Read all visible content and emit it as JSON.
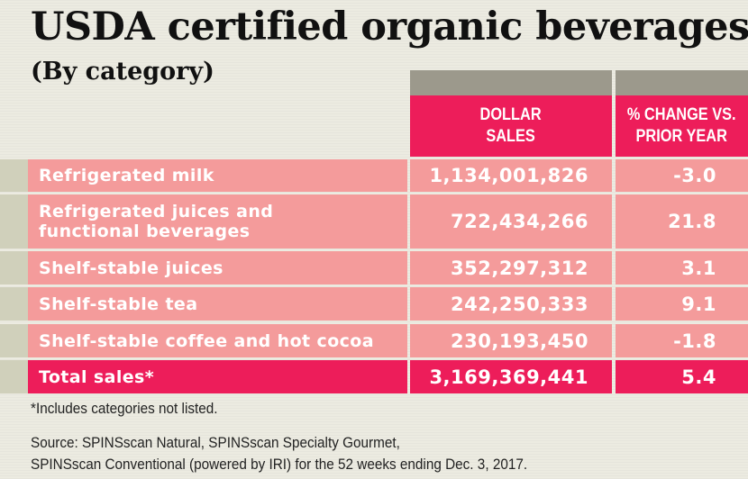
{
  "title": "USDA certified organic beverages",
  "subtitle": "(By category)",
  "chart_data": {
    "type": "table",
    "columns": [
      "DOLLAR\nSALES",
      "% CHANGE VS.\nPRIOR YEAR"
    ],
    "rows": [
      {
        "label": "Refrigerated milk",
        "sales": "1,134,001,826",
        "change": "-3.0"
      },
      {
        "label": "Refrigerated juices and\nfunctional beverages",
        "sales": "722,434,266",
        "change": "21.8"
      },
      {
        "label": "Shelf-stable juices",
        "sales": "352,297,312",
        "change": "3.1"
      },
      {
        "label": "Shelf-stable tea",
        "sales": "242,250,333",
        "change": "9.1"
      },
      {
        "label": "Shelf-stable coffee and hot cocoa",
        "sales": "230,193,450",
        "change": "-1.8"
      }
    ],
    "total": {
      "label": "Total sales*",
      "sales": "3,169,369,441",
      "change": "5.4"
    }
  },
  "footnote": "*Includes categories not listed.",
  "source_line1": "Source: SPINSscan Natural, SPINSscan Specialty Gourmet,",
  "source_line2": "SPINSscan Conventional (powered by IRI) for the 52 weeks ending Dec. 3, 2017.",
  "colors": {
    "accent": "#ed1d5a",
    "row_fill": "#f49b9b",
    "header_cap": "#9c998c",
    "row_tab": "#d0d0bb"
  }
}
